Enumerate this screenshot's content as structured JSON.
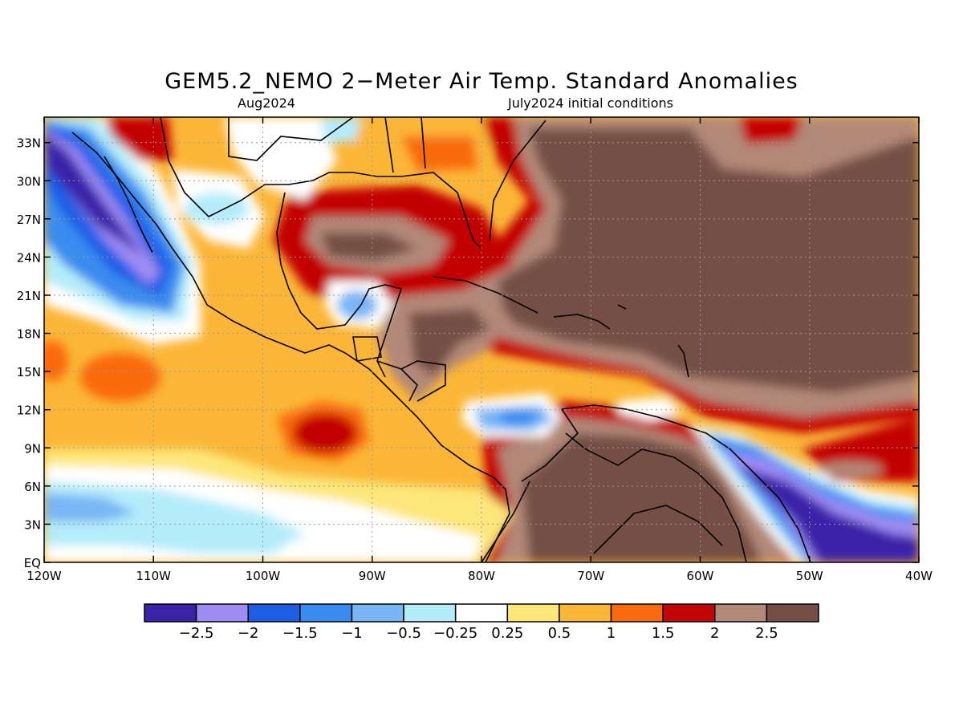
{
  "title": "GEM5.2_NEMO 2−Meter Air Temp. Standard Anomalies",
  "subtitle_left": "Aug2024",
  "subtitle_right": "July2024 initial conditions",
  "map": {
    "lon_range": [
      -120,
      -40
    ],
    "lat_range": [
      0,
      35
    ],
    "x_ticks": [
      "120W",
      "110W",
      "100W",
      "90W",
      "80W",
      "70W",
      "60W",
      "50W",
      "40W"
    ],
    "y_ticks": [
      "EQ",
      "3N",
      "6N",
      "9N",
      "12N",
      "15N",
      "18N",
      "21N",
      "24N",
      "27N",
      "30N",
      "33N"
    ],
    "gridlines": "dotted"
  },
  "colorbar": {
    "colors": [
      "#3a22a8",
      "#9f8cf5",
      "#1e5de6",
      "#3a8cf0",
      "#78b6f5",
      "#b4ecfa",
      "#ffffff",
      "#fde77a",
      "#fbb637",
      "#f96b0d",
      "#c30505",
      "#b28878",
      "#754f45"
    ],
    "labels": [
      "−2.5",
      "−2",
      "−1.5",
      "−1",
      "−0.5",
      "−0.25",
      "0.25",
      "0.5",
      "1",
      "1.5",
      "2",
      "2.5"
    ]
  }
}
